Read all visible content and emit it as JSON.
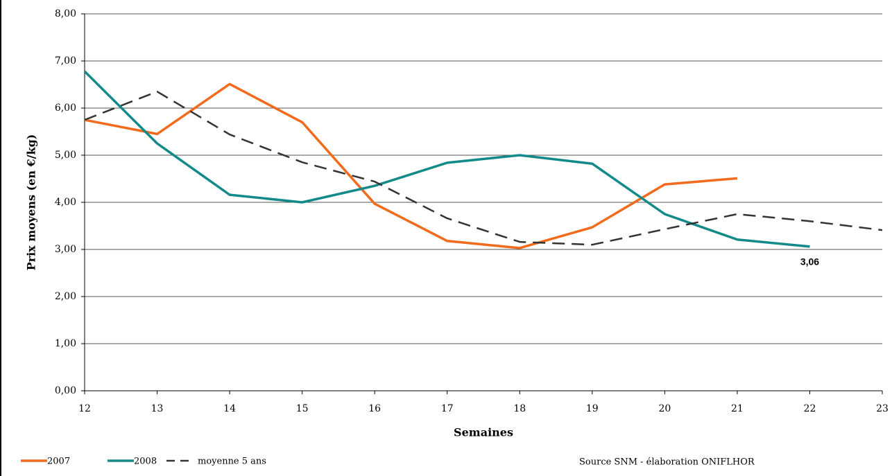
{
  "chart_data": {
    "type": "line",
    "x_label": "Semaines",
    "y_label": "Prix moyens (en €/kg)",
    "source": "Source SNM - élaboration ONIFLHOR",
    "x": [
      12,
      13,
      14,
      15,
      16,
      17,
      18,
      19,
      20,
      21,
      22,
      23
    ],
    "series": [
      {
        "name": "2007",
        "color": "#f26b1d",
        "style": "solid",
        "values": [
          5.75,
          5.45,
          6.51,
          5.7,
          3.97,
          3.18,
          3.03,
          3.47,
          4.38,
          4.51,
          null,
          null
        ]
      },
      {
        "name": "2008",
        "color": "#138a8a",
        "style": "solid",
        "values": [
          6.78,
          5.25,
          4.16,
          4.0,
          4.35,
          4.84,
          5.0,
          4.82,
          3.75,
          3.21,
          3.06,
          null
        ],
        "value_labels": [
          null,
          null,
          null,
          null,
          null,
          null,
          null,
          null,
          null,
          null,
          "3,06",
          null
        ]
      },
      {
        "name": "moyenne 5 ans",
        "color": "#333333",
        "style": "dashed",
        "values": [
          5.75,
          6.35,
          5.44,
          4.85,
          4.44,
          3.66,
          3.16,
          3.1,
          3.43,
          3.75,
          3.6,
          3.41
        ]
      }
    ],
    "xlim": [
      12,
      23
    ],
    "xticks": [
      12,
      13,
      14,
      15,
      16,
      17,
      18,
      19,
      20,
      21,
      22,
      23
    ],
    "ylim": [
      0,
      8
    ],
    "yticks": [
      {
        "value": 0,
        "label": "0,00"
      },
      {
        "value": 1,
        "label": "1,00"
      },
      {
        "value": 2,
        "label": "2,00"
      },
      {
        "value": 3,
        "label": "3,00"
      },
      {
        "value": 4,
        "label": "4,00"
      },
      {
        "value": 5,
        "label": "5,00"
      },
      {
        "value": 6,
        "label": "6,00"
      },
      {
        "value": 7,
        "label": "7,00"
      },
      {
        "value": 8,
        "label": "8,00"
      }
    ],
    "grid": true
  }
}
